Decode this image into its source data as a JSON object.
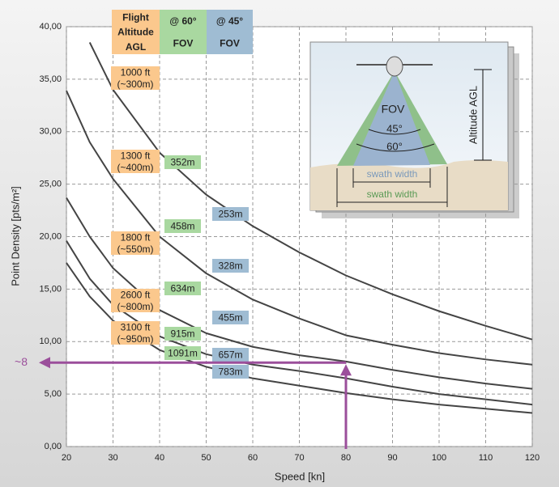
{
  "chart_data": {
    "type": "line",
    "xlabel": "Speed [kn]",
    "ylabel": "Point Density [pts/m²]",
    "x": [
      20,
      25,
      30,
      40,
      50,
      60,
      70,
      80,
      90,
      100,
      110,
      120
    ],
    "xlim": [
      20,
      120
    ],
    "xticks": [
      20,
      30,
      40,
      50,
      60,
      70,
      80,
      90,
      100,
      110,
      120
    ],
    "ylim": [
      0,
      40
    ],
    "yticks": [
      {
        "value": 0,
        "label": "0,00"
      },
      {
        "value": 5,
        "label": "5,00"
      },
      {
        "value": 10,
        "label": "10,00"
      },
      {
        "value": 15,
        "label": "15,00"
      },
      {
        "value": 20,
        "label": "20,00"
      },
      {
        "value": 25,
        "label": "25,00"
      },
      {
        "value": 30,
        "label": "30,00"
      },
      {
        "value": 35,
        "label": "35,00"
      },
      {
        "value": 40,
        "label": "40,00"
      }
    ],
    "grid": true,
    "headers": {
      "altitude": [
        "Flight",
        "Altitude",
        "AGL"
      ],
      "fov60": [
        "@ 60°",
        "FOV"
      ],
      "fov45": [
        "@ 45°",
        "FOV"
      ]
    },
    "series": [
      {
        "altitude": [
          "1000 ft",
          "(~300m)"
        ],
        "swath60": "352m",
        "swath45": "253m",
        "color": "#444444",
        "values": [
          null,
          38.5,
          34,
          28,
          24,
          21,
          18.5,
          16.3,
          14.5,
          12.9,
          11.5,
          10.2
        ]
      },
      {
        "altitude": [
          "1300 ft",
          "(~400m)"
        ],
        "swath60": "458m",
        "swath45": "328m",
        "color": "#444444",
        "values": [
          33.9,
          29,
          25.5,
          20,
          16.5,
          14,
          12.2,
          10.6,
          9.7,
          8.9,
          8.3,
          7.8
        ]
      },
      {
        "altitude": [
          "1800 ft",
          "(~550m)"
        ],
        "swath60": "634m",
        "swath45": "455m",
        "color": "#444444",
        "values": [
          23.7,
          20,
          17,
          13,
          10.8,
          9.5,
          8.7,
          8.1,
          7.3,
          6.6,
          6,
          5.5
        ]
      },
      {
        "altitude": [
          "2600 ft",
          "(~800m)"
        ],
        "swath60": "915m",
        "swath45": "657m",
        "color": "#444444",
        "values": [
          19.6,
          16,
          13.5,
          10.5,
          8.8,
          7.8,
          7.2,
          6.5,
          5.7,
          5,
          4.5,
          4
        ]
      },
      {
        "altitude": [
          "3100 ft",
          "(~950m)"
        ],
        "swath60": "1091m",
        "swath45": "783m",
        "color": "#444444",
        "values": [
          17.5,
          14.3,
          12,
          9.2,
          7.6,
          6.5,
          5.8,
          5.1,
          4.5,
          4,
          3.6,
          3.2
        ]
      }
    ],
    "annotation": {
      "label": "~8",
      "x": 80,
      "y": 8,
      "color": "#9b4f9b"
    },
    "inset": {
      "fov": "FOV",
      "a45": "45°",
      "a60": "60°",
      "altitude": "Altitude AGL",
      "swath45": "swath width",
      "swath60": "swath width"
    }
  }
}
